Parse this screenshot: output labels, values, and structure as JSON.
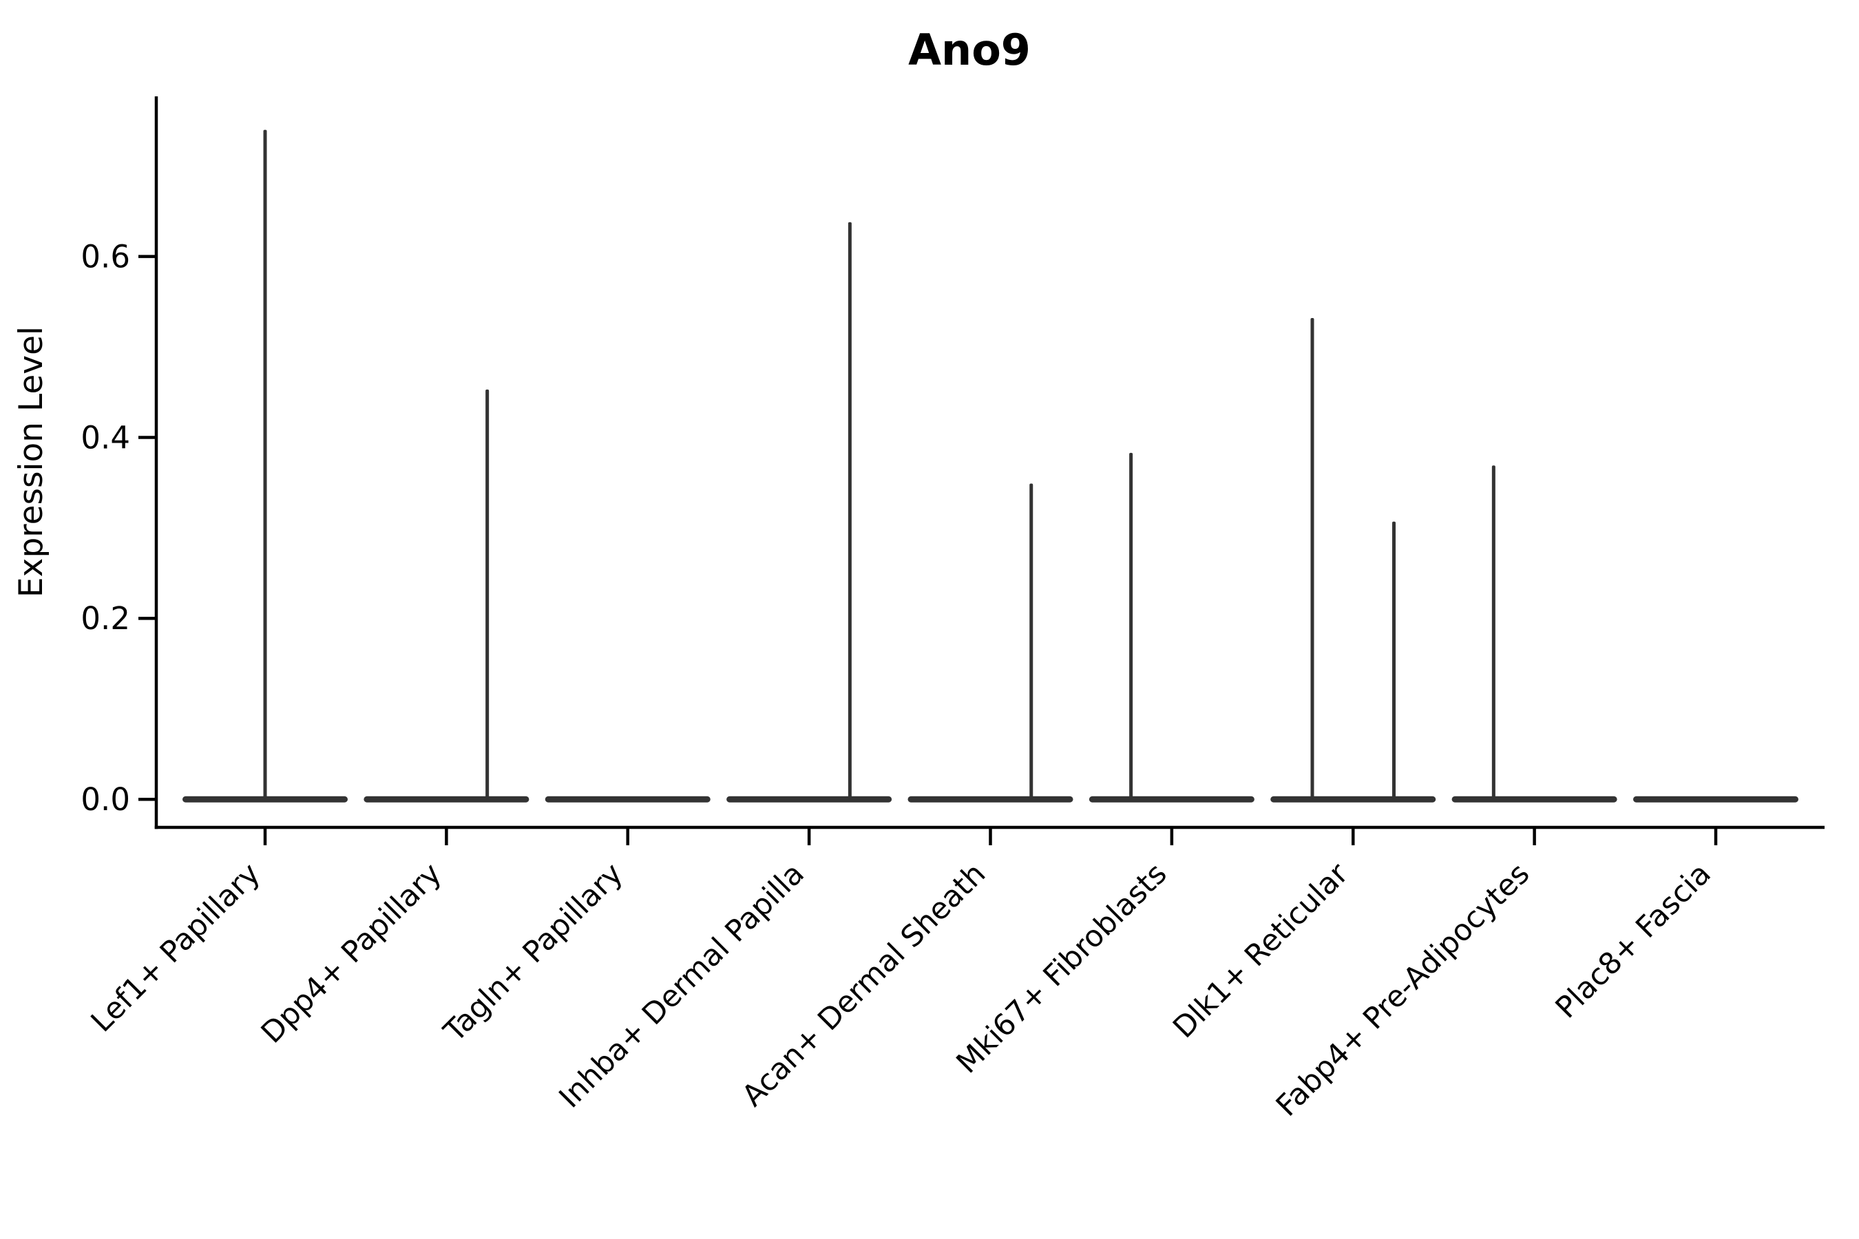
{
  "figure": {
    "title": "Ano9",
    "y_axis_label": "Expression Level"
  },
  "chart_data": {
    "type": "violin",
    "title": "Ano9",
    "xlabel": "",
    "ylabel": "Expression Level",
    "grid": false,
    "legend_position": "none",
    "background_color": "#ffffff",
    "axis_color": "#000000",
    "violin_color": "#333333",
    "ylim": [
      -0.031,
      0.777
    ],
    "xlim_units": [
      -0.6,
      8.6
    ],
    "y_ticks": [
      {
        "value": 0.0,
        "label": "0.0"
      },
      {
        "value": 0.2,
        "label": "0.2"
      },
      {
        "value": 0.4,
        "label": "0.4"
      },
      {
        "value": 0.6,
        "label": "0.6"
      }
    ],
    "categories": [
      "Lef1+ Papillary",
      "Dpp4+ Papillary",
      "Tagln+ Papillary",
      "Inhba+ Dermal Papilla",
      "Acan+ Dermal Sheath",
      "Mki67+ Fibroblasts",
      "Dlk1+ Reticular",
      "Fabp4+ Pre-Adipocytes",
      "Plac8+ Fascia"
    ],
    "violins": [
      {
        "category": "Lef1+ Papillary",
        "baseline_value": 0.0,
        "spikes": [
          {
            "offset_frac": 0.0,
            "max": 0.74
          }
        ]
      },
      {
        "category": "Dpp4+ Papillary",
        "baseline_value": 0.0,
        "spikes": [
          {
            "offset_frac": 0.225,
            "max": 0.453
          }
        ]
      },
      {
        "category": "Tagln+ Papillary",
        "baseline_value": 0.0,
        "spikes": []
      },
      {
        "category": "Inhba+ Dermal Papilla",
        "baseline_value": 0.0,
        "spikes": [
          {
            "offset_frac": 0.225,
            "max": 0.638
          }
        ]
      },
      {
        "category": "Acan+ Dermal Sheath",
        "baseline_value": 0.0,
        "spikes": [
          {
            "offset_frac": 0.225,
            "max": 0.349
          }
        ]
      },
      {
        "category": "Mki67+ Fibroblasts",
        "baseline_value": 0.0,
        "spikes": [
          {
            "offset_frac": -0.225,
            "max": 0.383
          }
        ]
      },
      {
        "category": "Dlk1+ Reticular",
        "baseline_value": 0.0,
        "spikes": [
          {
            "offset_frac": -0.225,
            "max": 0.532
          },
          {
            "offset_frac": 0.225,
            "max": 0.307
          }
        ]
      },
      {
        "category": "Fabp4+ Pre-Adipocytes",
        "baseline_value": 0.0,
        "spikes": [
          {
            "offset_frac": -0.225,
            "max": 0.369
          }
        ]
      },
      {
        "category": "Plac8+ Fascia",
        "baseline_value": 0.0,
        "spikes": []
      }
    ]
  }
}
